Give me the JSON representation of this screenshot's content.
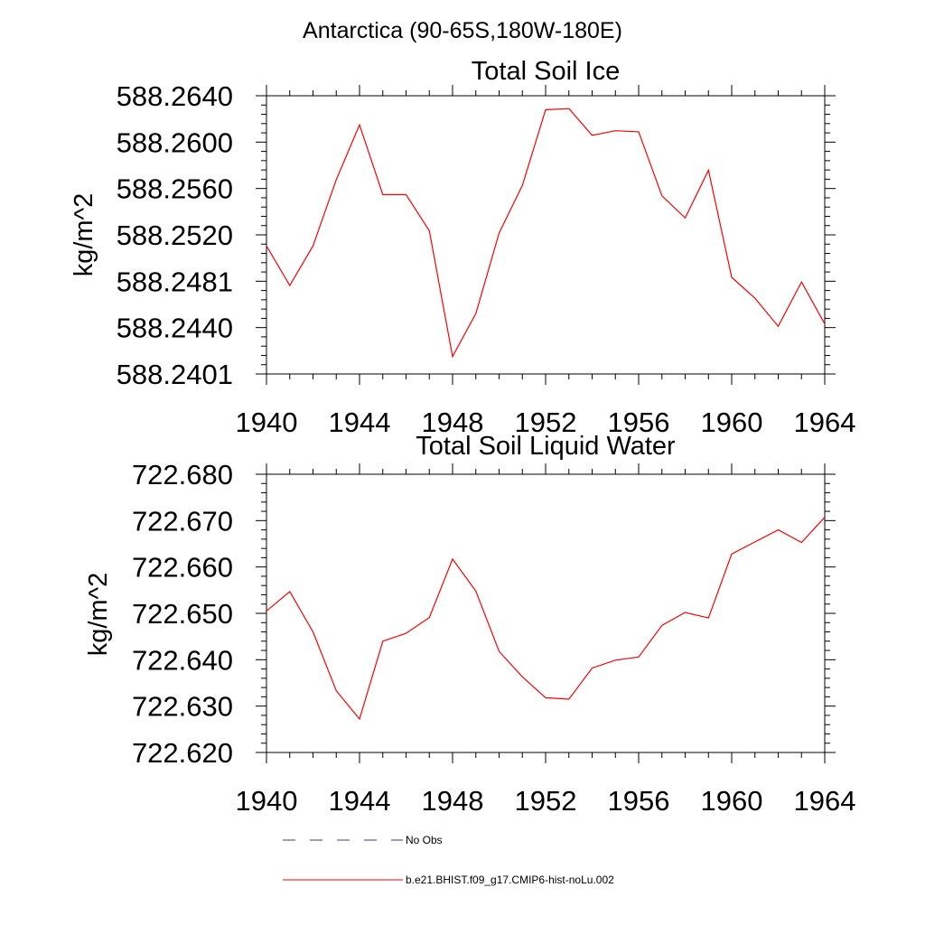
{
  "page": {
    "region_title": "Antarctica (90-65S,180W-180E)"
  },
  "colors": {
    "line": "#ff0000",
    "axis": "#000000",
    "no_obs": "#3b3b8a"
  },
  "legend": {
    "items": [
      {
        "label": "No Obs",
        "style": "dashed",
        "color": "#3b3b8a"
      },
      {
        "label": "b.e21.BHIST.f09_g17.CMIP6-hist-noLu.002",
        "style": "solid",
        "color": "#ff0000"
      }
    ]
  },
  "chart_data": [
    {
      "type": "line",
      "title": "Total Soil Ice",
      "xlabel": "",
      "ylabel": "kg/m^2",
      "xlim": [
        1940,
        1964
      ],
      "ylim": [
        588.2401,
        588.264
      ],
      "x_ticks": [
        1940,
        1944,
        1948,
        1952,
        1956,
        1960,
        1964
      ],
      "x_tick_labels": [
        "1940",
        "1944",
        "1948",
        "1952",
        "1956",
        "1960",
        "1964"
      ],
      "y_ticks": [
        588.2401,
        588.244,
        588.2481,
        588.252,
        588.256,
        588.26,
        588.264
      ],
      "y_tick_labels": [
        "588.2401",
        "588.2440",
        "588.2481",
        "588.2520",
        "588.2560",
        "588.2600",
        "588.2640"
      ],
      "grid": false,
      "series": [
        {
          "color": "#ff0000",
          "x": [
            1940,
            1941,
            1942,
            1943,
            1944,
            1945,
            1946,
            1947,
            1948,
            1949,
            1950,
            1951,
            1952,
            1953,
            1954,
            1955,
            1956,
            1957,
            1958,
            1959,
            1960,
            1961,
            1962,
            1963,
            1964
          ],
          "y": [
            588.2511,
            588.2477,
            588.2511,
            588.2568,
            588.2615,
            588.2555,
            588.2555,
            588.2524,
            588.2416,
            588.2453,
            588.2522,
            588.2563,
            588.2628,
            588.2629,
            588.2606,
            588.261,
            588.2609,
            588.2554,
            588.2535,
            588.2576,
            588.2484,
            588.2466,
            588.2442,
            588.248,
            588.2444
          ]
        }
      ]
    },
    {
      "type": "line",
      "title": "Total Soil Liquid Water",
      "xlabel": "",
      "ylabel": "kg/m^2",
      "xlim": [
        1940,
        1964
      ],
      "ylim": [
        722.62,
        722.68
      ],
      "x_ticks": [
        1940,
        1944,
        1948,
        1952,
        1956,
        1960,
        1964
      ],
      "x_tick_labels": [
        "1940",
        "1944",
        "1948",
        "1952",
        "1956",
        "1960",
        "1964"
      ],
      "y_ticks": [
        722.62,
        722.63,
        722.64,
        722.65,
        722.66,
        722.67,
        722.68
      ],
      "y_tick_labels": [
        "722.620",
        "722.630",
        "722.640",
        "722.650",
        "722.660",
        "722.670",
        "722.680"
      ],
      "grid": false,
      "series": [
        {
          "color": "#ff0000",
          "x": [
            1940,
            1941,
            1942,
            1943,
            1944,
            1945,
            1946,
            1947,
            1948,
            1949,
            1950,
            1951,
            1952,
            1953,
            1954,
            1955,
            1956,
            1957,
            1958,
            1959,
            1960,
            1961,
            1962,
            1963,
            1964
          ],
          "y": [
            722.6505,
            722.6547,
            722.646,
            722.6333,
            722.6272,
            722.644,
            722.6457,
            722.6491,
            722.6617,
            722.6548,
            722.6418,
            722.6363,
            722.6318,
            722.6315,
            722.6382,
            722.6399,
            722.6406,
            722.6474,
            722.6502,
            722.649,
            722.6628,
            722.6654,
            722.668,
            722.6653,
            722.6707
          ]
        }
      ]
    }
  ]
}
